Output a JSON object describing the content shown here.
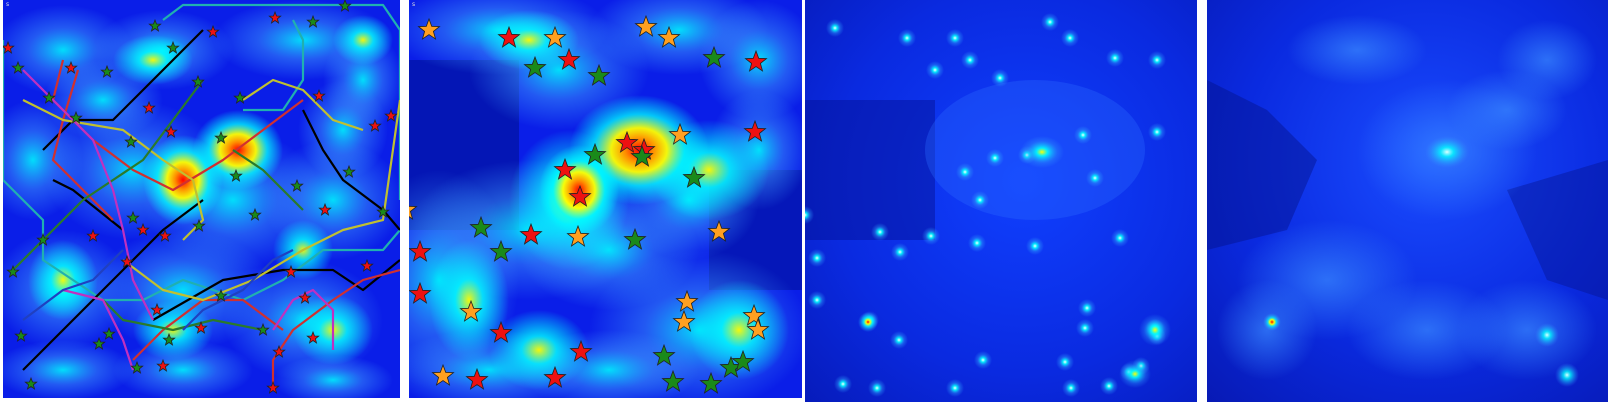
{
  "panels": [
    {
      "id": "a",
      "corner_label": "s"
    },
    {
      "id": "b",
      "corner_label": "s"
    },
    {
      "id": "c",
      "corner_label": ""
    },
    {
      "id": "d",
      "corner_label": ""
    }
  ],
  "colors": {
    "deep_blue": "#00008b",
    "blue": "#0000ff",
    "cyan": "#00ffff",
    "yellow": "#ffff00",
    "orange": "#ff8c00",
    "red": "#ff0000",
    "star_red": "#ee1111",
    "star_orange": "#ffa020",
    "star_green": "#1a8a1a"
  }
}
